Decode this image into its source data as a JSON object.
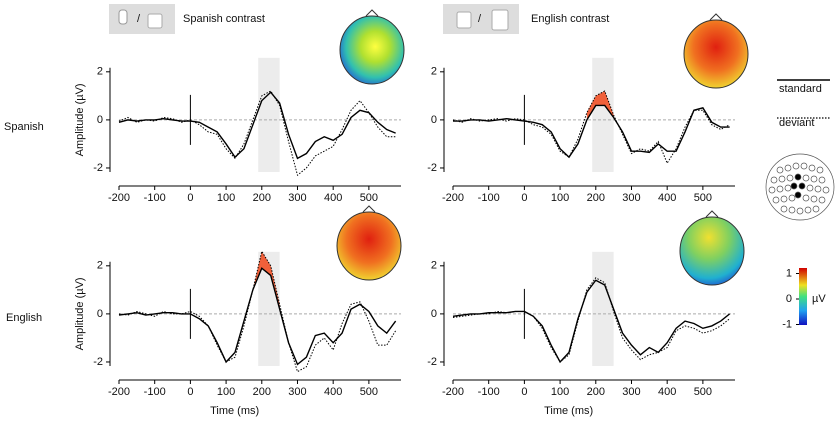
{
  "figure": {
    "column_titles": [
      "Spanish contrast",
      "English contrast"
    ],
    "row_labels": [
      "Spanish",
      "English"
    ],
    "separator": "/",
    "colorbar": {
      "ticks": [
        1,
        0,
        -1
      ],
      "label": "µV"
    }
  },
  "chart_data": [
    {
      "type": "line",
      "ylabel": "Amplitude (µV)",
      "window": [
        190,
        250
      ],
      "xlim": [
        -200,
        590
      ],
      "xticks": [
        -200,
        -100,
        0,
        100,
        200,
        300,
        400,
        500
      ],
      "ylim": [
        -2.75,
        2.2
      ],
      "yticks": [
        -2,
        0,
        2
      ],
      "x": [
        -200,
        -175,
        -150,
        -125,
        -100,
        -75,
        -50,
        -25,
        0,
        25,
        50,
        75,
        100,
        125,
        150,
        175,
        200,
        225,
        250,
        275,
        300,
        325,
        350,
        375,
        400,
        425,
        450,
        475,
        500,
        525,
        550,
        575
      ],
      "series": [
        {
          "name": "standard",
          "color": "#000000",
          "line_style": "solid",
          "values": [
            -0.1,
            0.0,
            -0.05,
            0.0,
            0.0,
            0.05,
            0.0,
            -0.05,
            -0.05,
            -0.1,
            -0.3,
            -0.5,
            -1.0,
            -1.55,
            -1.2,
            -0.2,
            0.8,
            1.15,
            0.7,
            -0.6,
            -1.6,
            -1.4,
            -0.9,
            -0.7,
            -0.85,
            -0.6,
            0.1,
            0.4,
            0.3,
            -0.1,
            -0.4,
            -0.55
          ]
        },
        {
          "name": "deviant",
          "color": "#000000",
          "line_style": "dotted",
          "values": [
            -0.05,
            0.1,
            -0.1,
            0.0,
            -0.05,
            0.1,
            0.05,
            -0.1,
            0.0,
            -0.2,
            -0.5,
            -0.6,
            -1.2,
            -1.6,
            -1.0,
            0.0,
            1.0,
            1.2,
            0.6,
            -0.9,
            -2.3,
            -2.0,
            -1.5,
            -1.3,
            -1.1,
            -0.4,
            0.4,
            0.8,
            0.3,
            -0.3,
            -0.7,
            -0.7
          ]
        }
      ]
    },
    {
      "type": "line",
      "window": [
        190,
        250
      ],
      "effect": {
        "color": "#f0603a",
        "range": [
          175,
          250
        ]
      },
      "xlim": [
        -200,
        590
      ],
      "xticks": [
        -200,
        -100,
        0,
        100,
        200,
        300,
        400,
        500
      ],
      "ylim": [
        -2.75,
        2.2
      ],
      "yticks": [
        -2,
        0,
        2
      ],
      "x": [
        -200,
        -175,
        -150,
        -125,
        -100,
        -75,
        -50,
        -25,
        0,
        25,
        50,
        75,
        100,
        125,
        150,
        175,
        200,
        225,
        250,
        275,
        300,
        325,
        350,
        375,
        400,
        425,
        450,
        475,
        500,
        525,
        550,
        575
      ],
      "series": [
        {
          "name": "standard",
          "color": "#000000",
          "line_style": "solid",
          "values": [
            -0.05,
            -0.05,
            0.0,
            0.0,
            -0.05,
            0.0,
            0.05,
            0.0,
            -0.05,
            -0.1,
            -0.2,
            -0.5,
            -1.2,
            -1.55,
            -1.0,
            0.0,
            0.6,
            0.6,
            0.1,
            -0.5,
            -1.3,
            -1.3,
            -1.35,
            -1.0,
            -1.3,
            -1.3,
            -0.5,
            0.4,
            0.5,
            -0.1,
            -0.3,
            -0.3
          ]
        },
        {
          "name": "deviant",
          "color": "#000000",
          "line_style": "dotted",
          "values": [
            0.0,
            -0.1,
            0.05,
            -0.05,
            0.0,
            0.05,
            -0.05,
            0.05,
            0.0,
            -0.2,
            -0.3,
            -0.6,
            -1.3,
            -1.55,
            -0.8,
            0.3,
            1.0,
            1.2,
            0.2,
            -0.6,
            -1.4,
            -1.2,
            -1.3,
            -0.9,
            -1.8,
            -1.2,
            -0.3,
            0.4,
            0.4,
            -0.2,
            -0.4,
            -0.2
          ]
        }
      ]
    },
    {
      "type": "line",
      "ylabel": "Amplitude (µV)",
      "xlabel": "Time (ms)",
      "window": [
        190,
        250
      ],
      "effect": {
        "color": "#f0603a",
        "range": [
          175,
          250
        ]
      },
      "xlim": [
        -200,
        590
      ],
      "xticks": [
        -200,
        -100,
        0,
        100,
        200,
        300,
        400,
        500
      ],
      "ylim": [
        -2.75,
        2.2
      ],
      "yticks": [
        -2,
        0,
        2
      ],
      "x": [
        -200,
        -175,
        -150,
        -125,
        -100,
        -75,
        -50,
        -25,
        0,
        25,
        50,
        75,
        100,
        125,
        150,
        175,
        200,
        225,
        250,
        275,
        300,
        325,
        350,
        375,
        400,
        425,
        450,
        475,
        500,
        525,
        550,
        575
      ],
      "series": [
        {
          "name": "standard",
          "color": "#000000",
          "line_style": "solid",
          "values": [
            -0.05,
            0.0,
            0.05,
            -0.05,
            0.0,
            0.05,
            0.05,
            0.0,
            0.0,
            -0.2,
            -0.5,
            -1.2,
            -2.0,
            -1.6,
            -0.3,
            1.0,
            1.9,
            1.6,
            0.2,
            -1.2,
            -2.1,
            -1.8,
            -0.9,
            -0.8,
            -1.2,
            -0.8,
            0.2,
            0.4,
            0.1,
            -0.5,
            -0.8,
            -0.3
          ]
        },
        {
          "name": "deviant",
          "color": "#000000",
          "line_style": "dotted",
          "values": [
            0.0,
            -0.05,
            0.1,
            0.0,
            -0.1,
            0.1,
            0.0,
            0.0,
            0.1,
            -0.1,
            -0.5,
            -1.3,
            -2.0,
            -1.8,
            -0.5,
            1.0,
            2.6,
            2.0,
            0.4,
            -1.2,
            -2.4,
            -2.2,
            -1.3,
            -1.0,
            -1.5,
            -0.4,
            0.4,
            0.5,
            -0.3,
            -1.3,
            -1.3,
            -0.7
          ]
        }
      ]
    },
    {
      "type": "line",
      "xlabel": "Time (ms)",
      "window": [
        190,
        250
      ],
      "xlim": [
        -200,
        590
      ],
      "xticks": [
        -200,
        -100,
        0,
        100,
        200,
        300,
        400,
        500
      ],
      "ylim": [
        -2.75,
        2.2
      ],
      "yticks": [
        -2,
        0,
        2
      ],
      "x": [
        -200,
        -175,
        -150,
        -125,
        -100,
        -75,
        -50,
        -25,
        0,
        25,
        50,
        75,
        100,
        125,
        150,
        175,
        200,
        225,
        250,
        275,
        300,
        325,
        350,
        375,
        400,
        425,
        450,
        475,
        500,
        525,
        550,
        575
      ],
      "series": [
        {
          "name": "standard",
          "color": "#000000",
          "line_style": "solid",
          "values": [
            -0.1,
            -0.05,
            0.0,
            0.0,
            0.05,
            0.05,
            0.05,
            0.1,
            0.1,
            -0.1,
            -0.5,
            -1.3,
            -2.0,
            -1.6,
            -0.2,
            0.9,
            1.4,
            1.2,
            0.2,
            -0.8,
            -1.3,
            -1.7,
            -1.4,
            -1.6,
            -1.2,
            -0.6,
            -0.3,
            -0.4,
            -0.6,
            -0.5,
            -0.3,
            0.0
          ]
        },
        {
          "name": "deviant",
          "color": "#000000",
          "line_style": "dotted",
          "values": [
            -0.15,
            -0.1,
            -0.05,
            0.0,
            0.0,
            0.1,
            0.05,
            0.1,
            0.1,
            -0.1,
            -0.6,
            -1.4,
            -2.0,
            -1.7,
            -0.3,
            1.0,
            1.5,
            1.3,
            0.1,
            -1.0,
            -1.5,
            -1.9,
            -1.7,
            -1.6,
            -1.4,
            -0.7,
            -0.5,
            -0.6,
            -0.8,
            -0.7,
            -0.5,
            -0.2
          ]
        }
      ]
    }
  ]
}
